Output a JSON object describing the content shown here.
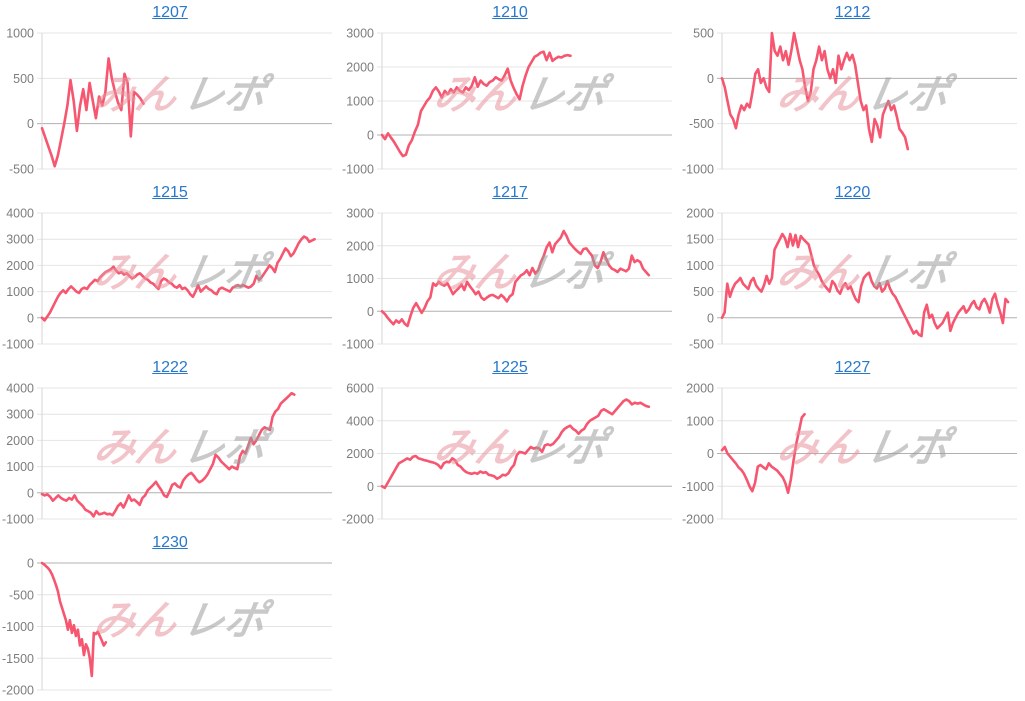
{
  "watermark": {
    "pink": "みん",
    "gray": "レポ"
  },
  "colors": {
    "line": "#f6566f",
    "link": "#2878cb",
    "grid": "#e4e4e4",
    "zero_grid": "#b0b0b0",
    "axis": "#d6d6d6",
    "tick_label": "#7d7d7d",
    "watermark_pink": "#e9939d",
    "watermark_gray": "#9e9e9e"
  },
  "chart_data": [
    {
      "type": "line",
      "title": "1207",
      "xlabel": "",
      "ylabel": "",
      "y_ticks": [
        1000,
        500,
        0,
        -500
      ],
      "ylim": [
        -500,
        1000
      ],
      "legend": "none",
      "grid": true,
      "fill_fraction": 0.35,
      "values": [
        -50,
        -150,
        -250,
        -350,
        -470,
        -350,
        -180,
        0,
        200,
        480,
        250,
        -80,
        200,
        380,
        150,
        450,
        250,
        60,
        300,
        200,
        350,
        720,
        500,
        350,
        230,
        150,
        550,
        450,
        -140,
        350,
        320,
        280,
        220
      ]
    },
    {
      "type": "line",
      "title": "1210",
      "xlabel": "",
      "ylabel": "",
      "y_ticks": [
        3000,
        2000,
        1000,
        0,
        -1000
      ],
      "ylim": [
        -1000,
        3000
      ],
      "legend": "none",
      "grid": true,
      "fill_fraction": 0.65,
      "values": [
        0,
        -120,
        50,
        -80,
        -200,
        -350,
        -500,
        -620,
        -580,
        -300,
        -150,
        100,
        300,
        700,
        850,
        1000,
        1100,
        1300,
        1400,
        1280,
        1100,
        1300,
        1200,
        1350,
        1250,
        1400,
        1300,
        1250,
        1400,
        1320,
        1450,
        1700,
        1420,
        1600,
        1500,
        1450,
        1560,
        1600,
        1700,
        1640,
        1600,
        1760,
        1950,
        1600,
        1380,
        1200,
        1050,
        1450,
        1750,
        2000,
        2150,
        2300,
        2350,
        2420,
        2450,
        2200,
        2420,
        2180,
        2250,
        2300,
        2280,
        2330,
        2350,
        2330
      ]
    },
    {
      "type": "line",
      "title": "1212",
      "xlabel": "",
      "ylabel": "",
      "y_ticks": [
        500,
        0,
        -500,
        -1000
      ],
      "ylim": [
        -1000,
        500
      ],
      "legend": "none",
      "grid": true,
      "fill_fraction": 0.63,
      "values": [
        0,
        -100,
        -250,
        -400,
        -450,
        -550,
        -400,
        -300,
        -350,
        -280,
        -320,
        -150,
        50,
        100,
        -50,
        0,
        -100,
        -150,
        500,
        300,
        250,
        350,
        200,
        300,
        150,
        300,
        500,
        350,
        200,
        100,
        -100,
        -250,
        -150,
        100,
        200,
        350,
        200,
        300,
        100,
        0,
        100,
        -50,
        250,
        100,
        200,
        280,
        200,
        260,
        150,
        -50,
        -250,
        -350,
        -300,
        -560,
        -700,
        -450,
        -520,
        -650,
        -400,
        -320,
        -250,
        -350,
        -300,
        -420,
        -560,
        -600,
        -650,
        -780
      ]
    },
    {
      "type": "line",
      "title": "1215",
      "xlabel": "",
      "ylabel": "",
      "y_ticks": [
        4000,
        3000,
        2000,
        1000,
        0,
        -1000
      ],
      "ylim": [
        -1000,
        4000
      ],
      "legend": "none",
      "grid": true,
      "fill_fraction": 0.94,
      "values": [
        0,
        -100,
        50,
        200,
        400,
        600,
        800,
        950,
        1050,
        950,
        1100,
        1200,
        1100,
        1000,
        950,
        1100,
        1150,
        1100,
        1250,
        1350,
        1450,
        1400,
        1550,
        1650,
        1750,
        1800,
        1850,
        1950,
        1800,
        1700,
        1750,
        1650,
        1700,
        1600,
        1500,
        1550,
        1650,
        1700,
        1600,
        1500,
        1450,
        1350,
        1300,
        1200,
        1100,
        1400,
        1500,
        1450,
        1350,
        1300,
        1200,
        1150,
        1250,
        1100,
        1150,
        1050,
        900,
        800,
        1000,
        1250,
        1000,
        1100,
        1200,
        1100,
        1050,
        950,
        900,
        1100,
        1150,
        1100,
        1050,
        1000,
        1150,
        1200,
        1250,
        1200,
        1250,
        1200,
        1150,
        1200,
        1300,
        1600,
        1450,
        1550,
        1700,
        1850,
        2000,
        1900,
        1750,
        2100,
        2250,
        2450,
        2650,
        2550,
        2350,
        2450,
        2650,
        2850,
        3000,
        3100,
        3050,
        2900,
        2950,
        3000
      ]
    },
    {
      "type": "line",
      "title": "1217",
      "xlabel": "",
      "ylabel": "",
      "y_ticks": [
        3000,
        2000,
        1000,
        0,
        -1000
      ],
      "ylim": [
        -1000,
        3000
      ],
      "legend": "none",
      "grid": true,
      "fill_fraction": 0.92,
      "values": [
        0,
        -80,
        -200,
        -300,
        -400,
        -280,
        -350,
        -250,
        -380,
        -450,
        -150,
        100,
        250,
        100,
        -50,
        100,
        300,
        420,
        850,
        780,
        900,
        820,
        780,
        860,
        700,
        520,
        620,
        700,
        820,
        650,
        900,
        760,
        650,
        520,
        600,
        420,
        350,
        420,
        480,
        500,
        450,
        400,
        500,
        420,
        300,
        450,
        520,
        900,
        1000,
        1100,
        1150,
        1250,
        1100,
        1320,
        1150,
        1250,
        1500,
        1700,
        1950,
        2100,
        1800,
        2050,
        2150,
        2250,
        2450,
        2300,
        2100,
        2000,
        1900,
        1820,
        1750,
        1900,
        1920,
        1800,
        1700,
        1400,
        1320,
        1500,
        1800,
        1600,
        1400,
        1300,
        1260,
        1200,
        1300,
        1260,
        1220,
        1300,
        1700,
        1500,
        1560,
        1500,
        1300,
        1200,
        1100
      ]
    },
    {
      "type": "line",
      "title": "1220",
      "xlabel": "",
      "ylabel": "",
      "y_ticks": [
        2000,
        1500,
        1000,
        500,
        0,
        -500
      ],
      "ylim": [
        -500,
        2000
      ],
      "legend": "none",
      "grid": true,
      "fill_fraction": 0.97,
      "values": [
        0,
        100,
        650,
        400,
        550,
        650,
        700,
        760,
        650,
        600,
        550,
        700,
        760,
        620,
        550,
        500,
        620,
        800,
        650,
        760,
        1300,
        1400,
        1500,
        1600,
        1520,
        1350,
        1600,
        1380,
        1580,
        1350,
        1560,
        1500,
        1450,
        1400,
        1200,
        1000,
        900,
        820,
        700,
        620,
        560,
        500,
        700,
        640,
        520,
        460,
        600,
        660,
        550,
        600,
        460,
        350,
        300,
        600,
        760,
        820,
        860,
        700,
        600,
        560,
        660,
        500,
        560,
        700,
        560,
        460,
        400,
        300,
        200,
        100,
        0,
        -100,
        -200,
        -300,
        -250,
        -320,
        -350,
        100,
        250,
        0,
        60,
        -100,
        -200,
        -150,
        -100,
        0,
        100,
        -250,
        -100,
        0,
        100,
        160,
        220,
        100,
        160,
        260,
        320,
        200,
        160,
        300,
        360,
        260,
        100,
        360,
        460,
        260,
        100,
        -100,
        360,
        300
      ]
    },
    {
      "type": "line",
      "title": "1222",
      "xlabel": "",
      "ylabel": "",
      "y_ticks": [
        4000,
        3000,
        2000,
        1000,
        0,
        -1000
      ],
      "ylim": [
        -1000,
        4000
      ],
      "legend": "none",
      "grid": true,
      "fill_fraction": 0.87,
      "values": [
        -50,
        -100,
        -60,
        -150,
        -300,
        -200,
        -100,
        -200,
        -260,
        -300,
        -200,
        -260,
        -100,
        -300,
        -400,
        -500,
        -650,
        -700,
        -760,
        -900,
        -700,
        -820,
        -800,
        -760,
        -820,
        -800,
        -860,
        -700,
        -500,
        -400,
        -560,
        -350,
        -100,
        -300,
        -260,
        -350,
        -460,
        -200,
        -100,
        100,
        200,
        300,
        420,
        250,
        100,
        -100,
        -160,
        50,
        300,
        360,
        250,
        200,
        460,
        600,
        700,
        760,
        650,
        500,
        400,
        460,
        560,
        700,
        900,
        1100,
        1450,
        1350,
        1200,
        1100,
        1000,
        900,
        1000,
        950,
        900,
        1400,
        1600,
        1500,
        1800,
        2100,
        1850,
        2000,
        2200,
        2400,
        2500,
        2450,
        2400,
        2900,
        3100,
        3200,
        3400,
        3500,
        3600,
        3700,
        3800,
        3750
      ]
    },
    {
      "type": "line",
      "title": "1225",
      "xlabel": "",
      "ylabel": "",
      "y_ticks": [
        6000,
        4000,
        2000,
        0,
        -2000
      ],
      "ylim": [
        -2000,
        6000
      ],
      "legend": "none",
      "grid": true,
      "fill_fraction": 0.92,
      "values": [
        0,
        -100,
        200,
        500,
        800,
        1100,
        1400,
        1500,
        1600,
        1700,
        1620,
        1800,
        1850,
        1700,
        1660,
        1600,
        1560,
        1500,
        1460,
        1400,
        1300,
        1100,
        1400,
        1500,
        1460,
        1700,
        1600,
        1300,
        1200,
        1000,
        860,
        800,
        760,
        820,
        760,
        900,
        820,
        860,
        700,
        660,
        600,
        460,
        560,
        700,
        660,
        800,
        1100,
        1300,
        1900,
        2100,
        2060,
        2000,
        2200,
        2400,
        2300,
        2360,
        2300,
        2100,
        2500,
        2560,
        2500,
        2600,
        2800,
        3000,
        3300,
        3500,
        3620,
        3700,
        3500,
        3400,
        3200,
        3400,
        3500,
        3800,
        4000,
        4100,
        4200,
        4300,
        4600,
        4700,
        4600,
        4500,
        4400,
        4600,
        4800,
        5000,
        5200,
        5300,
        5200,
        5000,
        5100,
        5050,
        5100,
        5000,
        4900,
        4850
      ]
    },
    {
      "type": "line",
      "title": "1227",
      "xlabel": "",
      "ylabel": "",
      "y_ticks": [
        2000,
        1000,
        0,
        -1000,
        -2000
      ],
      "ylim": [
        -2000,
        2000
      ],
      "legend": "none",
      "grid": true,
      "fill_fraction": 0.28,
      "values": [
        100,
        200,
        0,
        -100,
        -200,
        -300,
        -420,
        -500,
        -620,
        -800,
        -1000,
        -1150,
        -900,
        -400,
        -350,
        -420,
        -480,
        -300,
        -400,
        -460,
        -520,
        -620,
        -720,
        -900,
        -1200,
        -800,
        -200,
        300,
        700,
        1100,
        1200
      ]
    },
    {
      "type": "line",
      "title": "1230",
      "xlabel": "",
      "ylabel": "",
      "y_ticks": [
        0,
        -500,
        -1000,
        -1500,
        -2000
      ],
      "ylim": [
        -2000,
        0
      ],
      "legend": "none",
      "grid": true,
      "fill_fraction": 0.22,
      "values": [
        0,
        -20,
        -50,
        -80,
        -120,
        -180,
        -260,
        -350,
        -450,
        -600,
        -700,
        -800,
        -900,
        -1050,
        -900,
        -1100,
        -980,
        -1150,
        -1050,
        -1300,
        -1200,
        -1450,
        -1280,
        -1350,
        -1500,
        -1780,
        -1100,
        -1120,
        -1080,
        -1150,
        -1220,
        -1300,
        -1250
      ]
    }
  ]
}
